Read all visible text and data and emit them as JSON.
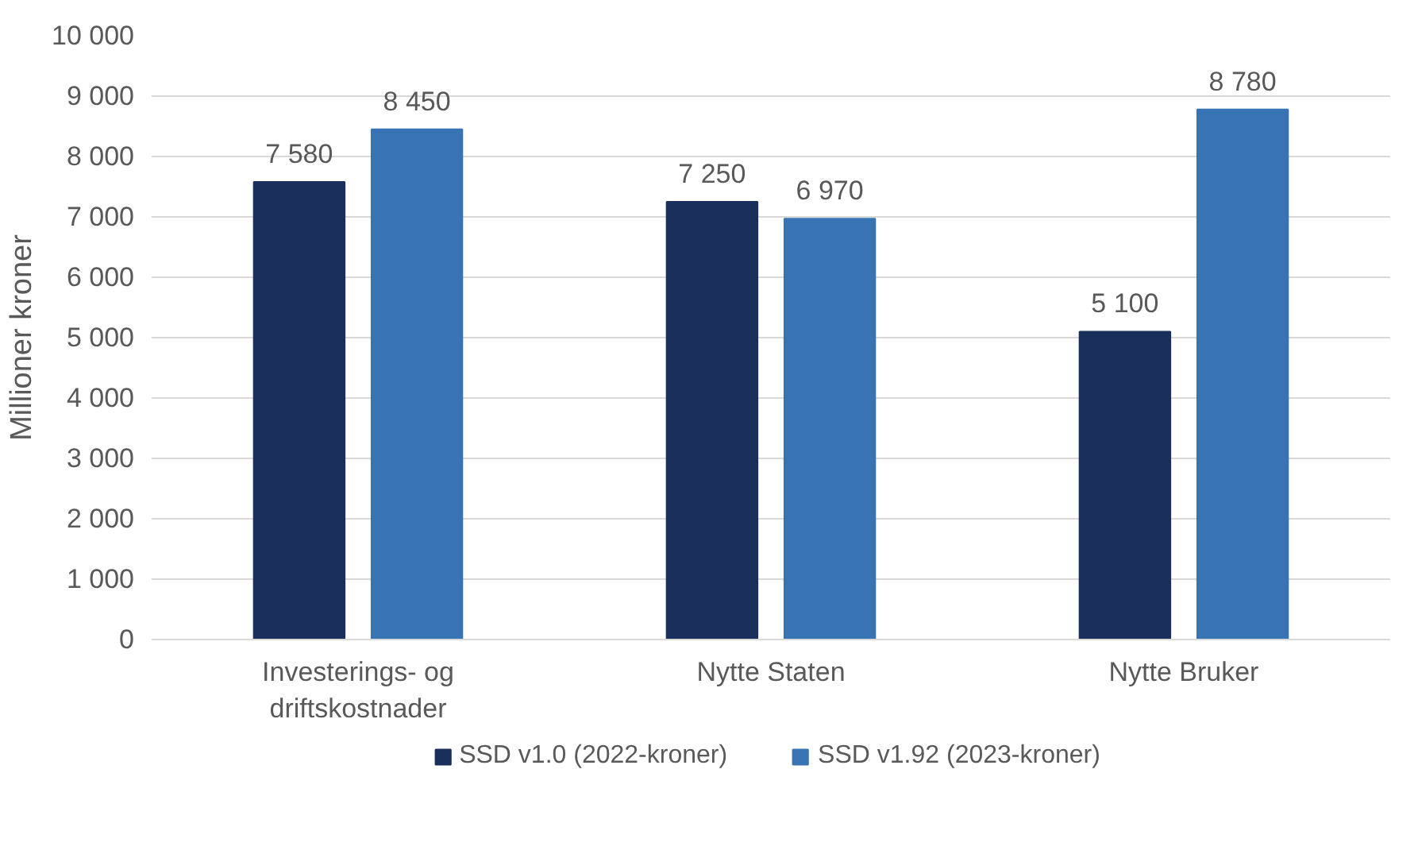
{
  "chart_data": {
    "type": "bar",
    "ylabel": "Millioner kroner",
    "categories": [
      "Investerings- og driftskostnader",
      "Nytte Staten",
      "Nytte Bruker"
    ],
    "series": [
      {
        "name": "SSD v1.0 (2022-kroner)",
        "color": "#1b2f5c",
        "values": [
          7580,
          7250,
          5100
        ],
        "value_labels": [
          "7 580",
          "7 250",
          "5 100"
        ]
      },
      {
        "name": "SSD v1.92 (2023-kroner)",
        "color": "#3873b3",
        "values": [
          8450,
          6970,
          8780
        ],
        "value_labels": [
          "8 450",
          "6 970",
          "8 780"
        ]
      }
    ],
    "ylim": [
      0,
      10000
    ],
    "yticks": [
      0,
      {
        "value": 1000,
        "label": "1 000"
      },
      {
        "value": 2000,
        "label": "2 000"
      },
      {
        "value": 3000,
        "label": "3 000"
      },
      {
        "value": 4000,
        "label": "4 000"
      },
      {
        "value": 5000,
        "label": "5 000"
      },
      {
        "value": 6000,
        "label": "6 000"
      },
      {
        "value": 7000,
        "label": "7 000"
      },
      {
        "value": 8000,
        "label": "8 000"
      },
      {
        "value": 9000,
        "label": "9 000"
      },
      {
        "value": 10000,
        "label": "10 000"
      }
    ],
    "grid": "y",
    "legend": "bottom"
  }
}
